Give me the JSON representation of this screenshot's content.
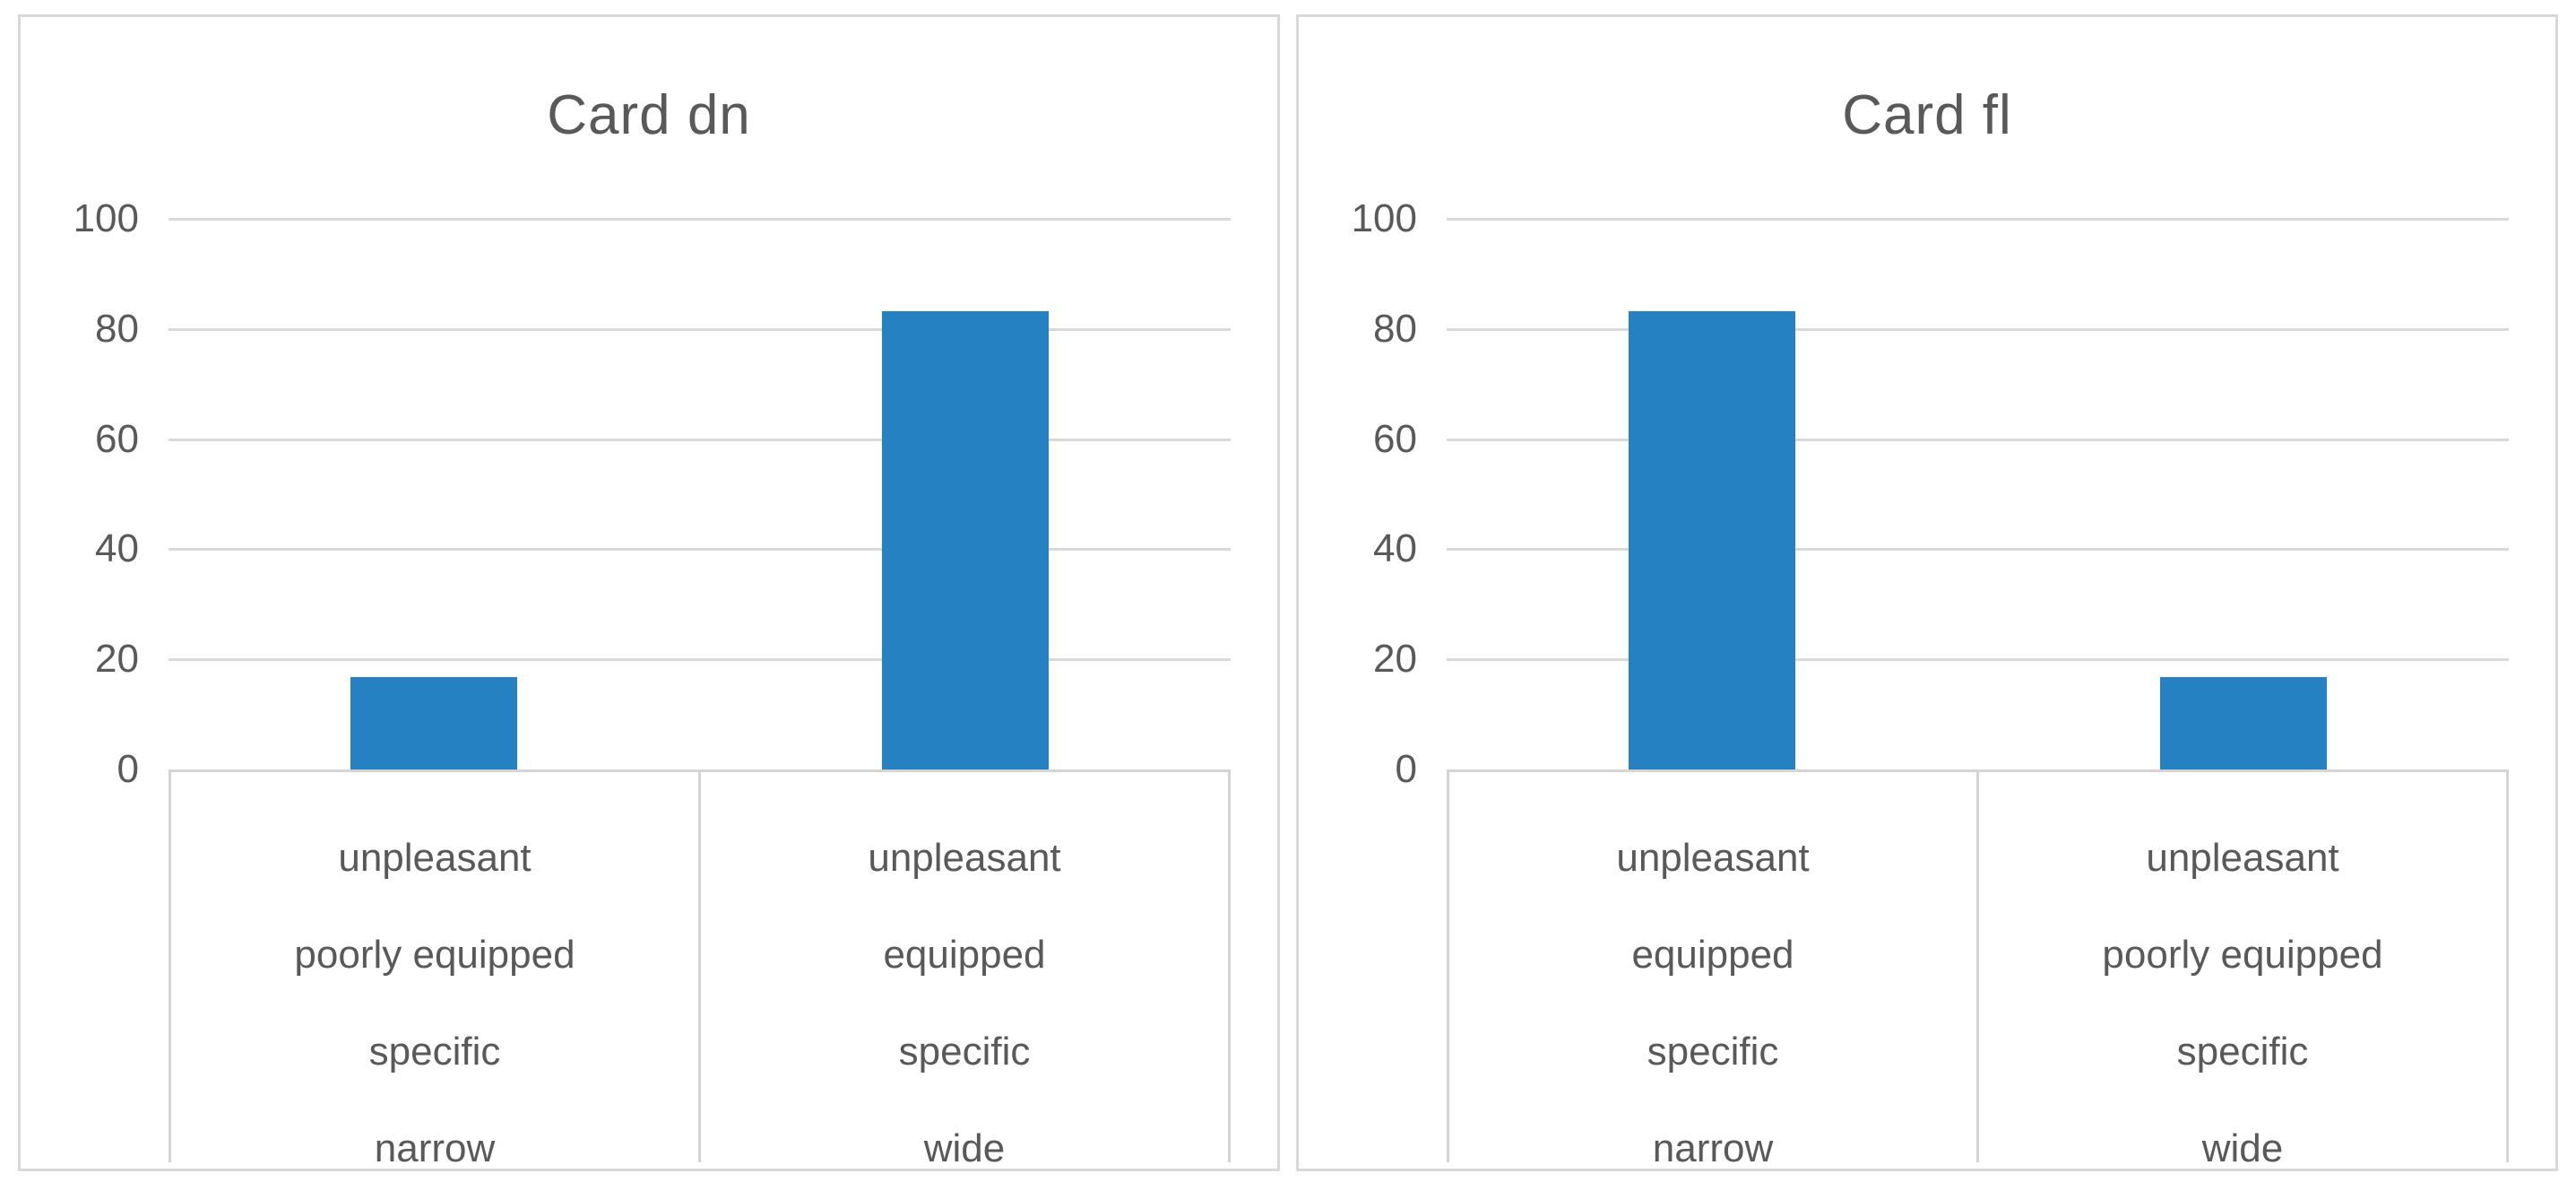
{
  "page": {
    "background_color": "#ffffff"
  },
  "styles": {
    "bar_color": "#2581c1",
    "text_color": "#595959",
    "gridline_color": "#d9d9d9",
    "box_border_color": "#d4d4d4",
    "panel_border_color": "#d8d8d8"
  },
  "chart_data": [
    {
      "type": "bar",
      "title": "Card dn",
      "categories": [
        {
          "lines": [
            "unpleasant",
            "poorly equipped",
            "specific",
            "narrow"
          ]
        },
        {
          "lines": [
            "unpleasant",
            "equipped",
            "specific",
            "wide"
          ]
        }
      ],
      "values": [
        16.7,
        83.3
      ],
      "xlabel": "",
      "ylabel": "",
      "ylim": [
        0,
        100
      ],
      "yticks": [
        0,
        20,
        40,
        60,
        80,
        100
      ],
      "grid": true,
      "legend": "none"
    },
    {
      "type": "bar",
      "title": "Card fl",
      "categories": [
        {
          "lines": [
            "unpleasant",
            "equipped",
            "specific",
            "narrow"
          ]
        },
        {
          "lines": [
            "unpleasant",
            "poorly equipped",
            "specific",
            "wide"
          ]
        }
      ],
      "values": [
        83.3,
        16.7
      ],
      "xlabel": "",
      "ylabel": "",
      "ylim": [
        0,
        100
      ],
      "yticks": [
        0,
        20,
        40,
        60,
        80,
        100
      ],
      "grid": true,
      "legend": "none"
    }
  ]
}
